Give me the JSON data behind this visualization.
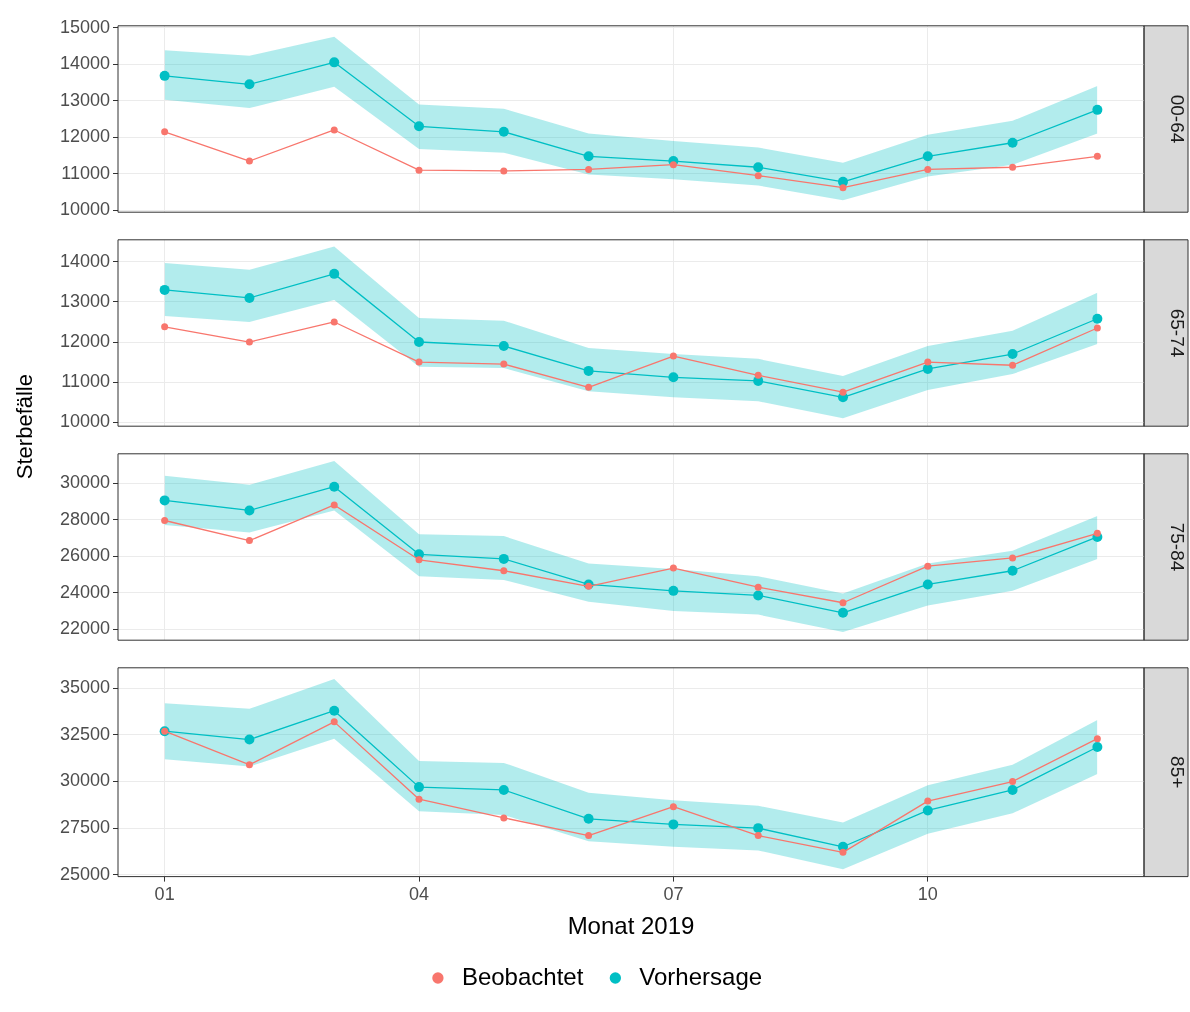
{
  "chart_data": [
    {
      "type": "line",
      "y2label": "00-64",
      "x": [
        1,
        2,
        3,
        4,
        5,
        6,
        7,
        8,
        9,
        10,
        11,
        12
      ],
      "xlim": [
        0.45,
        12.55
      ],
      "xticks": [
        {
          "value": 1,
          "label": null
        },
        {
          "value": 4,
          "label": null
        },
        {
          "value": 7,
          "label": null
        },
        {
          "value": 10,
          "label": null
        }
      ],
      "ylim": [
        9950,
        15050
      ],
      "yticks": [
        10000,
        11000,
        12000,
        13000,
        14000,
        15000
      ],
      "grid": true,
      "legend": false,
      "marker": "circle",
      "tick_labels": "y",
      "series": [
        {
          "color": "#f8766d",
          "values": [
            12150,
            11350,
            12200,
            11100,
            11080,
            11120,
            11250,
            10950,
            10620,
            11120,
            11180,
            11480
          ]
        },
        {
          "color": "#00bfc4",
          "values": [
            13680,
            13450,
            14050,
            12300,
            12150,
            11480,
            11350,
            11180,
            10780,
            11480,
            11850,
            12750
          ],
          "lower": [
            13030,
            12800,
            13380,
            11680,
            11580,
            10980,
            10850,
            10680,
            10280,
            10930,
            11250,
            12100
          ],
          "upper": [
            14380,
            14230,
            14750,
            12900,
            12780,
            12100,
            11900,
            11720,
            11300,
            12070,
            12450,
            13400
          ]
        }
      ]
    },
    {
      "type": "line",
      "y2label": "65-74",
      "ylabel": "Sterbefälle",
      "x": [
        1,
        2,
        3,
        4,
        5,
        6,
        7,
        8,
        9,
        10,
        11,
        12
      ],
      "xlim": [
        0.45,
        12.55
      ],
      "xticks": [
        {
          "value": 1,
          "label": null
        },
        {
          "value": 4,
          "label": null
        },
        {
          "value": 7,
          "label": null
        },
        {
          "value": 10,
          "label": null
        }
      ],
      "ylim": [
        9900,
        14550
      ],
      "yticks": [
        10000,
        11000,
        12000,
        13000,
        14000
      ],
      "grid": true,
      "legend": false,
      "marker": "circle",
      "tick_labels": "y",
      "series": [
        {
          "color": "#f8766d",
          "values": [
            12380,
            12000,
            12500,
            11500,
            11450,
            10870,
            11650,
            11170,
            10750,
            11500,
            11420,
            12350
          ]
        },
        {
          "color": "#00bfc4",
          "values": [
            13300,
            13100,
            13700,
            12000,
            11900,
            11280,
            11120,
            11030,
            10620,
            11330,
            11700,
            12580
          ],
          "lower": [
            12650,
            12500,
            13050,
            11380,
            11350,
            10770,
            10620,
            10520,
            10100,
            10800,
            11200,
            11950
          ],
          "upper": [
            13970,
            13800,
            14380,
            12600,
            12530,
            11850,
            11700,
            11580,
            11150,
            11900,
            12280,
            13230
          ]
        }
      ]
    },
    {
      "type": "line",
      "y2label": "75-84",
      "x": [
        1,
        2,
        3,
        4,
        5,
        6,
        7,
        8,
        9,
        10,
        11,
        12
      ],
      "xlim": [
        0.45,
        12.55
      ],
      "xticks": [
        {
          "value": 1,
          "label": null
        },
        {
          "value": 4,
          "label": null
        },
        {
          "value": 7,
          "label": null
        },
        {
          "value": 10,
          "label": null
        }
      ],
      "ylim": [
        21400,
        31600
      ],
      "yticks": [
        22000,
        24000,
        26000,
        28000,
        30000
      ],
      "grid": true,
      "legend": false,
      "marker": "circle",
      "tick_labels": "y",
      "series": [
        {
          "color": "#f8766d",
          "values": [
            27950,
            26850,
            28800,
            25800,
            25200,
            24350,
            25350,
            24300,
            23450,
            25450,
            25900,
            27250
          ]
        },
        {
          "color": "#00bfc4",
          "values": [
            29050,
            28500,
            29800,
            26100,
            25850,
            24450,
            24100,
            23850,
            22900,
            24450,
            25200,
            27050
          ],
          "lower": [
            27700,
            27300,
            28500,
            24900,
            24700,
            23500,
            23000,
            22800,
            21850,
            23300,
            24100,
            25850
          ],
          "upper": [
            30400,
            29900,
            31200,
            27200,
            27100,
            25600,
            25300,
            24900,
            23950,
            25600,
            26300,
            28200
          ]
        }
      ]
    },
    {
      "type": "line",
      "y2label": "85+",
      "xlabel": "Monat 2019",
      "x": [
        1,
        2,
        3,
        4,
        5,
        6,
        7,
        8,
        9,
        10,
        11,
        12
      ],
      "xlim": [
        0.45,
        12.55
      ],
      "xticks": [
        {
          "value": 1,
          "label": "01"
        },
        {
          "value": 4,
          "label": "04"
        },
        {
          "value": 7,
          "label": "07"
        },
        {
          "value": 10,
          "label": "10"
        }
      ],
      "ylim": [
        24900,
        36100
      ],
      "yticks": [
        25000,
        27500,
        30000,
        32500,
        35000
      ],
      "grid": true,
      "legend": "bottom",
      "marker": "circle",
      "series": [
        {
          "name": "Beobachtet",
          "color": "#f8766d",
          "values": [
            32700,
            30900,
            33200,
            29050,
            28050,
            27100,
            28650,
            27100,
            26200,
            28950,
            30000,
            32300
          ]
        },
        {
          "name": "Vorhersage",
          "color": "#00bfc4",
          "values": [
            32700,
            32250,
            33800,
            29700,
            29550,
            28000,
            27700,
            27500,
            26500,
            28450,
            29550,
            31850
          ],
          "lower": [
            31200,
            30800,
            32300,
            28400,
            28200,
            26800,
            26500,
            26300,
            25300,
            27200,
            28300,
            30400
          ],
          "upper": [
            34200,
            33900,
            35500,
            31100,
            31000,
            29400,
            29000,
            28700,
            27800,
            29800,
            30900,
            33300
          ]
        }
      ]
    }
  ]
}
